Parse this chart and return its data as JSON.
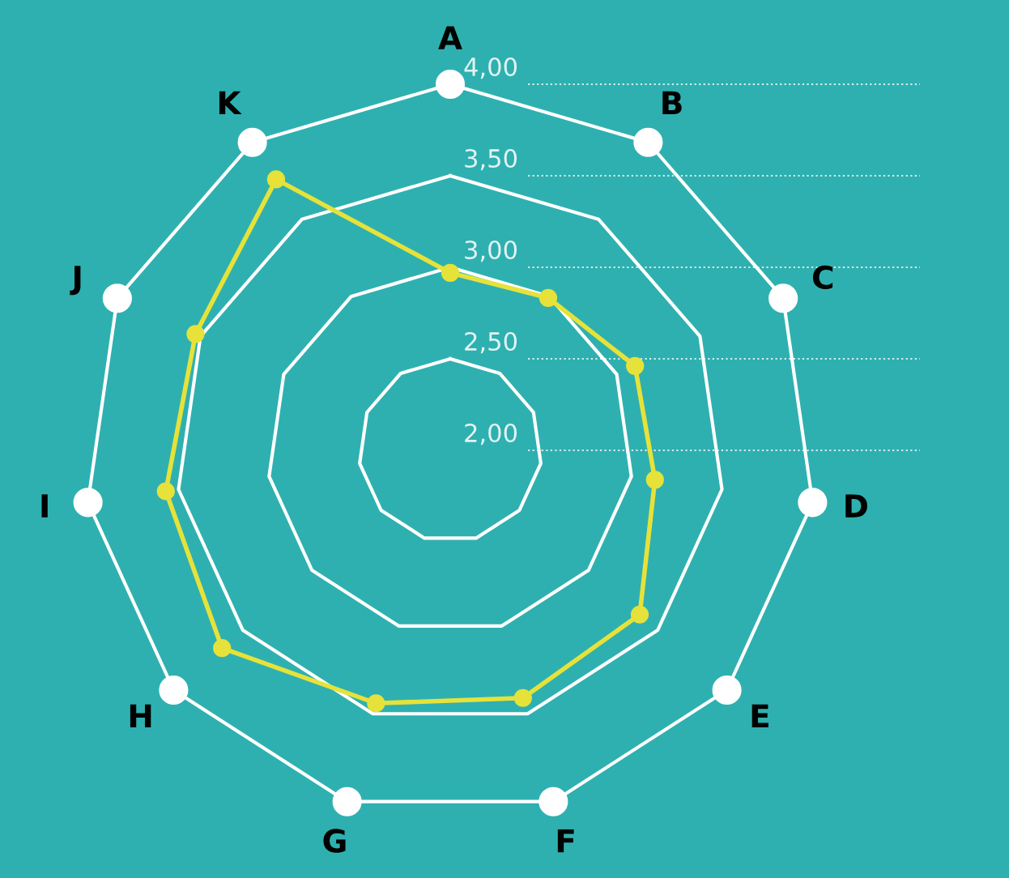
{
  "chart_data": {
    "type": "radar",
    "categories": [
      "A",
      "B",
      "C",
      "D",
      "E",
      "F",
      "G",
      "H",
      "I",
      "J",
      "K"
    ],
    "series": [
      {
        "color": "#e6e23a",
        "values": [
          2.97,
          2.99,
          3.11,
          3.13,
          3.37,
          3.41,
          3.44,
          3.65,
          3.57,
          3.53,
          3.76
        ]
      }
    ],
    "ylim": [
      2,
      4
    ],
    "yticks": [
      {
        "value": 2,
        "label": "2,00"
      },
      {
        "value": 2.5,
        "label": "2,50"
      },
      {
        "value": 3,
        "label": "3,00"
      },
      {
        "value": 3.5,
        "label": "3,50"
      },
      {
        "value": 4,
        "label": "4,00"
      }
    ],
    "marker": "circle",
    "grid": true
  }
}
